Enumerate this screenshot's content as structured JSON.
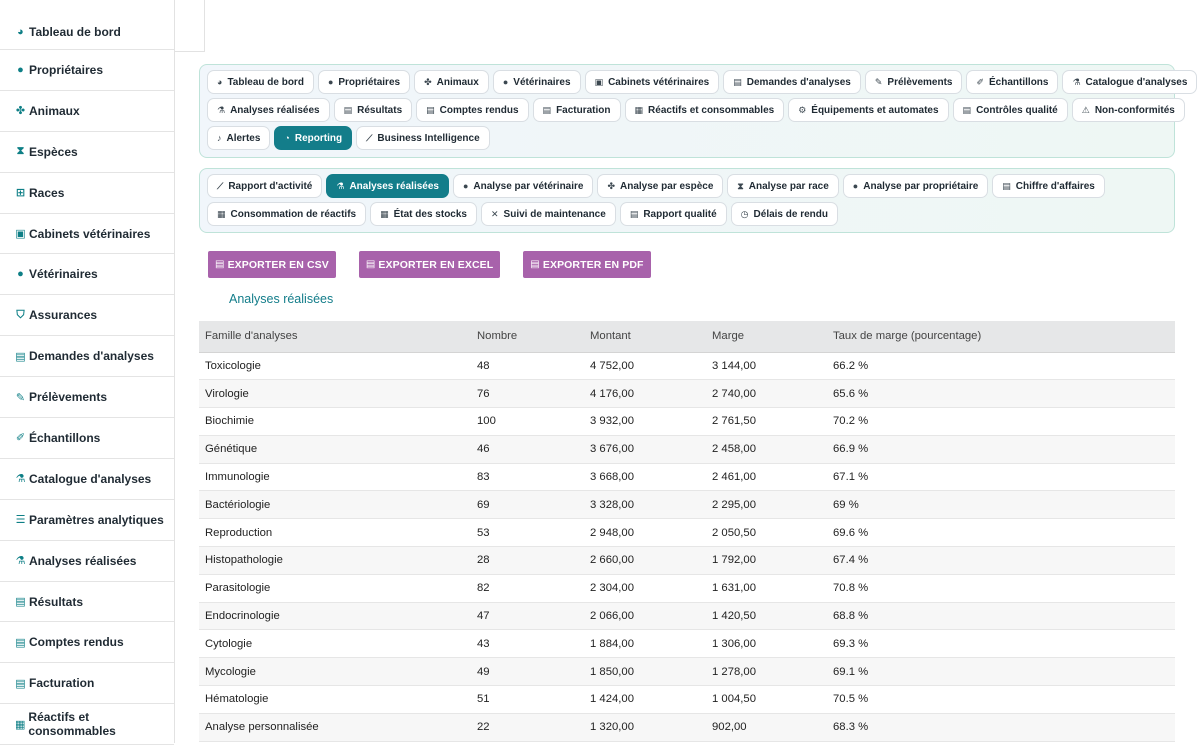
{
  "sidebar": {
    "items": [
      {
        "label": "Tableau de bord",
        "icon": "dashboard-icon",
        "glyph": "◕"
      },
      {
        "label": "Propriétaires",
        "icon": "user-icon",
        "glyph": "●"
      },
      {
        "label": "Animaux",
        "icon": "paw-icon",
        "glyph": "✤"
      },
      {
        "label": "Espèces",
        "icon": "hourglass-icon",
        "glyph": "⧗"
      },
      {
        "label": "Races",
        "icon": "sitemap-icon",
        "glyph": "⊞"
      },
      {
        "label": "Cabinets vétérinaires",
        "icon": "clinic-icon",
        "glyph": "▣"
      },
      {
        "label": "Vétérinaires",
        "icon": "user-doctor-icon",
        "glyph": "●"
      },
      {
        "label": "Assurances",
        "icon": "shield-icon",
        "glyph": "⛉"
      },
      {
        "label": "Demandes d'analyses",
        "icon": "file-medical-icon",
        "glyph": "▤"
      },
      {
        "label": "Prélèvements",
        "icon": "syringe-icon",
        "glyph": "✎"
      },
      {
        "label": "Échantillons",
        "icon": "eyedropper-icon",
        "glyph": "✐"
      },
      {
        "label": "Catalogue d'analyses",
        "icon": "microscope-icon",
        "glyph": "⚗"
      },
      {
        "label": "Paramètres analytiques",
        "icon": "list-icon",
        "glyph": "☰"
      },
      {
        "label": "Analyses réalisées",
        "icon": "flask-icon",
        "glyph": "⚗"
      },
      {
        "label": "Résultats",
        "icon": "clipboard-icon",
        "glyph": "▤"
      },
      {
        "label": "Comptes rendus",
        "icon": "file-pdf-icon",
        "glyph": "▤"
      },
      {
        "label": "Facturation",
        "icon": "invoice-icon",
        "glyph": "▤"
      },
      {
        "label": "Réactifs et consommables",
        "icon": "boxes-icon",
        "glyph": "▦"
      }
    ]
  },
  "top_nav": {
    "rows": [
      [
        {
          "label": "Tableau de bord",
          "icon": "dashboard-icon",
          "glyph": "◕"
        },
        {
          "label": "Propriétaires",
          "icon": "user-icon",
          "glyph": "●"
        },
        {
          "label": "Animaux",
          "icon": "paw-icon",
          "glyph": "✤"
        },
        {
          "label": "Vétérinaires",
          "icon": "user-doctor-icon",
          "glyph": "●"
        },
        {
          "label": "Cabinets vétérinaires",
          "icon": "clinic-icon",
          "glyph": "▣"
        },
        {
          "label": "Demandes d'analyses",
          "icon": "file-medical-icon",
          "glyph": "▤"
        },
        {
          "label": "Prélèvements",
          "icon": "syringe-icon",
          "glyph": "✎"
        },
        {
          "label": "Échantillons",
          "icon": "eyedropper-icon",
          "glyph": "✐"
        },
        {
          "label": "Catalogue d'analyses",
          "icon": "microscope-icon",
          "glyph": "⚗"
        }
      ],
      [
        {
          "label": "Analyses réalisées",
          "icon": "flask-icon",
          "glyph": "⚗"
        },
        {
          "label": "Résultats",
          "icon": "clipboard-icon",
          "glyph": "▤"
        },
        {
          "label": "Comptes rendus",
          "icon": "file-pdf-icon",
          "glyph": "▤"
        },
        {
          "label": "Facturation",
          "icon": "invoice-icon",
          "glyph": "▤"
        },
        {
          "label": "Réactifs et consommables",
          "icon": "boxes-icon",
          "glyph": "▦"
        },
        {
          "label": "Équipements et automates",
          "icon": "cogs-icon",
          "glyph": "⚙"
        },
        {
          "label": "Contrôles qualité",
          "icon": "clipboard-check-icon",
          "glyph": "▤"
        },
        {
          "label": "Non-conformités",
          "icon": "warning-icon",
          "glyph": "⚠"
        }
      ],
      [
        {
          "label": "Alertes",
          "icon": "bell-icon",
          "glyph": "♪"
        },
        {
          "label": "Reporting",
          "icon": "chart-pie-icon",
          "glyph": "◔",
          "active": true
        },
        {
          "label": "Business Intelligence",
          "icon": "chart-line-icon",
          "glyph": "⟋"
        }
      ]
    ]
  },
  "report_nav": {
    "rows": [
      [
        {
          "label": "Rapport d'activité",
          "icon": "chart-line-icon",
          "glyph": "⟋"
        },
        {
          "label": "Analyses réalisées",
          "icon": "microscope-icon",
          "glyph": "⚗",
          "active": true
        },
        {
          "label": "Analyse par vétérinaire",
          "icon": "user-doctor-icon",
          "glyph": "●"
        },
        {
          "label": "Analyse par espèce",
          "icon": "paw-icon",
          "glyph": "✤"
        },
        {
          "label": "Analyse par race",
          "icon": "hourglass-icon",
          "glyph": "⧗"
        },
        {
          "label": "Analyse par propriétaire",
          "icon": "user-icon",
          "glyph": "●"
        },
        {
          "label": "Chiffre d'affaires",
          "icon": "money-icon",
          "glyph": "▤"
        }
      ],
      [
        {
          "label": "Consommation de réactifs",
          "icon": "boxes-icon",
          "glyph": "▦"
        },
        {
          "label": "État des stocks",
          "icon": "warehouse-icon",
          "glyph": "▦"
        },
        {
          "label": "Suivi de maintenance",
          "icon": "tools-icon",
          "glyph": "✕"
        },
        {
          "label": "Rapport qualité",
          "icon": "clipboard-check-icon",
          "glyph": "▤"
        },
        {
          "label": "Délais de rendu",
          "icon": "clock-icon",
          "glyph": "◷"
        }
      ]
    ]
  },
  "exports": {
    "csv_label": "EXPORTER EN CSV",
    "excel_label": "EXPORTER EN EXCEL",
    "pdf_label": "EXPORTER EN PDF"
  },
  "report": {
    "title": "Analyses réalisées",
    "columns": [
      "Famille d'analyses",
      "Nombre",
      "Montant",
      "Marge",
      "Taux de marge (pourcentage)"
    ],
    "rows": [
      [
        "Toxicologie",
        "48",
        "4 752,00",
        "3 144,00",
        "66.2 %"
      ],
      [
        "Virologie",
        "76",
        "4 176,00",
        "2 740,00",
        "65.6 %"
      ],
      [
        "Biochimie",
        "100",
        "3 932,00",
        "2 761,50",
        "70.2 %"
      ],
      [
        "Génétique",
        "46",
        "3 676,00",
        "2 458,00",
        "66.9 %"
      ],
      [
        "Immunologie",
        "83",
        "3 668,00",
        "2 461,00",
        "67.1 %"
      ],
      [
        "Bactériologie",
        "69",
        "3 328,00",
        "2 295,00",
        "69 %"
      ],
      [
        "Reproduction",
        "53",
        "2 948,00",
        "2 050,50",
        "69.6 %"
      ],
      [
        "Histopathologie",
        "28",
        "2 660,00",
        "1 792,00",
        "67.4 %"
      ],
      [
        "Parasitologie",
        "82",
        "2 304,00",
        "1 631,00",
        "70.8 %"
      ],
      [
        "Endocrinologie",
        "47",
        "2 066,00",
        "1 420,50",
        "68.8 %"
      ],
      [
        "Cytologie",
        "43",
        "1 884,00",
        "1 306,00",
        "69.3 %"
      ],
      [
        "Mycologie",
        "49",
        "1 850,00",
        "1 278,00",
        "69.1 %"
      ],
      [
        "Hématologie",
        "51",
        "1 424,00",
        "1 004,50",
        "70.5 %"
      ],
      [
        "Analyse personnalisée",
        "22",
        "1 320,00",
        "902,00",
        "68.3 %"
      ]
    ]
  },
  "colors": {
    "accent": "#137d8a",
    "export_button": "#a862ab",
    "table_header_bg": "#e6e7e8"
  }
}
